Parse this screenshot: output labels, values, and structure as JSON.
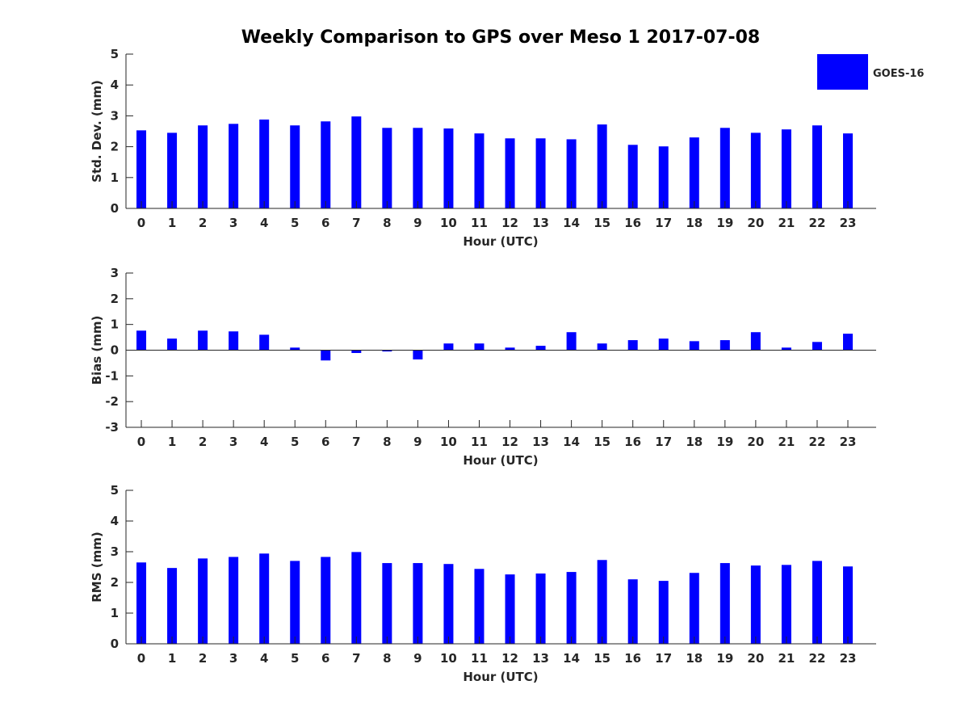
{
  "chart_data": {
    "type": "bar",
    "title": "Weekly Comparison to GPS over Meso 1 2017-07-08",
    "legend": {
      "entries": [
        "GOES-16"
      ],
      "placement": "top-right"
    },
    "bar_color": "#0000ff",
    "categories": [
      "0",
      "1",
      "2",
      "3",
      "4",
      "5",
      "6",
      "7",
      "8",
      "9",
      "10",
      "11",
      "12",
      "13",
      "14",
      "15",
      "16",
      "17",
      "18",
      "19",
      "20",
      "21",
      "22",
      "23"
    ],
    "panels": [
      {
        "name": "std-dev",
        "xlabel": "Hour (UTC)",
        "ylabel": "Std. Dev. (mm)",
        "ylim": [
          0,
          5
        ],
        "yticks": [
          "0",
          "1",
          "2",
          "3",
          "4",
          "5"
        ],
        "series": [
          {
            "name": "GOES-16",
            "values": [
              2.53,
              2.45,
              2.69,
              2.74,
              2.88,
              2.69,
              2.82,
              2.98,
              2.61,
              2.61,
              2.59,
              2.43,
              2.27,
              2.27,
              2.24,
              2.72,
              2.06,
              2.01,
              2.3,
              2.61,
              2.45,
              2.56,
              2.69,
              2.43
            ]
          }
        ]
      },
      {
        "name": "bias",
        "xlabel": "Hour (UTC)",
        "ylabel": "Bias (mm)",
        "ylim": [
          -3,
          3
        ],
        "yticks": [
          "-3",
          "-2",
          "-1",
          "0",
          "1",
          "2",
          "3"
        ],
        "series": [
          {
            "name": "GOES-16",
            "values": [
              0.76,
              0.45,
              0.76,
              0.73,
              0.6,
              0.1,
              -0.4,
              -0.11,
              -0.05,
              -0.36,
              0.26,
              0.26,
              0.1,
              0.17,
              0.7,
              0.26,
              0.39,
              0.45,
              0.35,
              0.39,
              0.7,
              0.1,
              0.32,
              0.64
            ]
          }
        ]
      },
      {
        "name": "rms",
        "xlabel": "Hour (UTC)",
        "ylabel": "RMS (mm)",
        "ylim": [
          0,
          5
        ],
        "yticks": [
          "0",
          "1",
          "2",
          "3",
          "4",
          "5"
        ],
        "series": [
          {
            "name": "GOES-16",
            "values": [
              2.65,
              2.47,
              2.78,
              2.83,
              2.94,
              2.7,
              2.83,
              2.99,
              2.63,
              2.63,
              2.6,
              2.44,
              2.26,
              2.29,
              2.34,
              2.73,
              2.1,
              2.05,
              2.31,
              2.63,
              2.55,
              2.57,
              2.7,
              2.52
            ]
          }
        ]
      }
    ]
  }
}
